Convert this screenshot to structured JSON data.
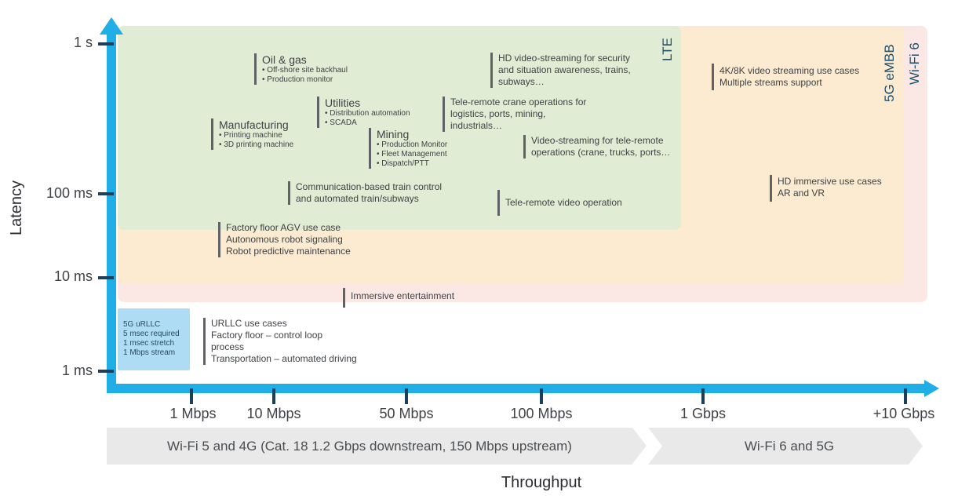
{
  "axes": {
    "y_title": "Latency",
    "x_title": "Throughput",
    "y_ticks": [
      "1 s",
      "100 ms",
      "10 ms",
      "1 ms"
    ],
    "x_ticks": [
      "1 Mbps",
      "10 Mbps",
      "50 Mbps",
      "100 Mbps",
      "1 Gbps",
      "+10 Gbps"
    ],
    "color": "#1faee6"
  },
  "regions": {
    "lte": "LTE",
    "fiveg_embb": "5G eMBB",
    "wifi6": "Wi-Fi 6",
    "urllc": [
      "5G uRLLC",
      "5 msec required",
      "1 msec stretch",
      "1 Mbps stream"
    ],
    "colors": {
      "lte": "#e1ecd4",
      "fiveg_embb": "#fcebd0",
      "wifi6": "#fbe8e5",
      "urllc": "#aedcf4"
    }
  },
  "bands": {
    "left": "Wi-Fi 5 and 4G (Cat. 18 1.2 Gbps downstream, 150 Mbps upstream)",
    "right": "Wi-Fi 6 and 5G"
  },
  "annotations": {
    "oil_gas": {
      "title": "Oil & gas",
      "items": [
        "• Off-shore site backhaul",
        "• Production monitor"
      ]
    },
    "utilities": {
      "title": "Utilities",
      "items": [
        "• Distribution automation",
        "• SCADA"
      ]
    },
    "manufacturing": {
      "title": "Manufacturing",
      "items": [
        "• Printing machine",
        "• 3D printing machine"
      ]
    },
    "mining": {
      "title": "Mining",
      "items": [
        "• Production Monitor",
        "• Fleet Management",
        "• Dispatch/PTT"
      ]
    },
    "hd_video_security": {
      "lines": [
        "HD video-streaming for security",
        "and situation awareness, trains,",
        "subways…"
      ]
    },
    "crane": {
      "lines": [
        "Tele-remote crane operations for",
        "logistics, ports, mining,",
        "industrials…"
      ]
    },
    "video_teleremote": {
      "lines": [
        "Video-streaming for tele-remote",
        "operations (crane, trucks, ports…"
      ]
    },
    "train_control": {
      "lines": [
        "Communication-based train control",
        "and automated train/subways"
      ]
    },
    "teleremote_video": {
      "lines": [
        "Tele-remote video operation"
      ]
    },
    "agv": {
      "lines": [
        "Factory floor AGV use case",
        "Autonomous robot signaling",
        "Robot predictive maintenance"
      ]
    },
    "immersive_ent": {
      "lines": [
        "Immersive entertainment"
      ]
    },
    "urllc_cases": {
      "lines": [
        "URLLC use cases",
        "Factory floor – control loop",
        "process",
        "Transportation – automated driving"
      ]
    },
    "video_4k8k": {
      "lines": [
        "4K/8K video streaming use cases",
        "Multiple streams support"
      ]
    },
    "hd_immersive": {
      "lines": [
        "HD immersive use cases",
        "AR and VR"
      ]
    }
  }
}
